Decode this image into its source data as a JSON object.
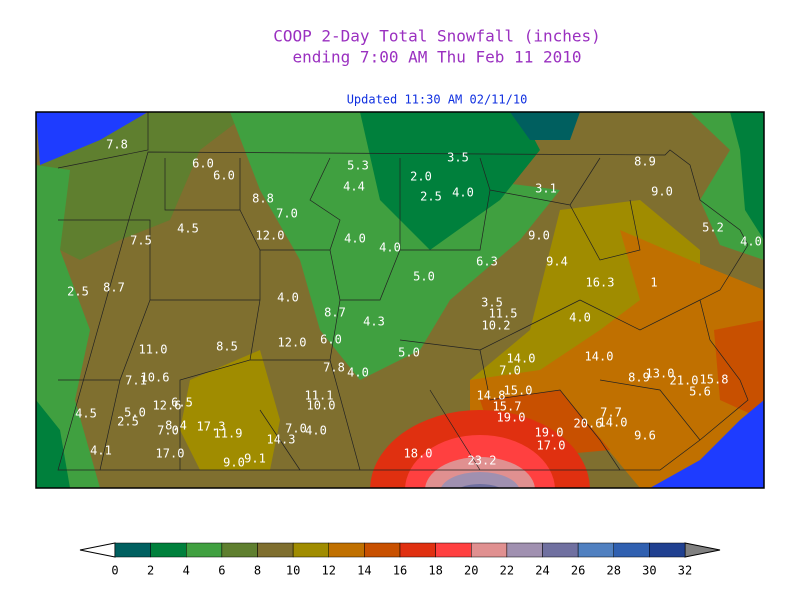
{
  "header": {
    "title": "COOP 2-Day Total Snowfall (inches)",
    "subtitle": "ending 7:00 AM Thu Feb 11 2010",
    "updated": "Updated 11:30 AM 02/11/10"
  },
  "station_values": [
    "7.8",
    "6.0",
    "6.0",
    "5.3",
    "3.5",
    "2.0",
    "8.9",
    "4.4",
    "3.1",
    "9.0",
    "2.5",
    "4.0",
    "8.8",
    "7.0",
    "4.5",
    "5.2",
    "12.0",
    "7.5",
    "4.0",
    "4.0",
    "9.0",
    "4.0",
    "5.0",
    "6.3",
    "9.4",
    "16.3",
    "1",
    "2.5",
    "8.7",
    "4.0",
    "3.5",
    "11.5",
    "8.7",
    "4.3",
    "10.2",
    "4.0",
    "12.0",
    "6.0",
    "11.0",
    "8.5",
    "5.0",
    "14.0",
    "14.0",
    "7.8",
    "4.0",
    "7.0",
    "8.9",
    "13.0",
    "21.0",
    "15.8",
    "7.1",
    "10.6",
    "5.6",
    "11.1",
    "14.8",
    "15.0",
    "12.6",
    "6.5",
    "10.0",
    "15.7",
    "4.5",
    "5.0",
    "7.7",
    "2.5",
    "19.0",
    "20.6",
    "14.0",
    "7.0",
    "8.4",
    "17.3",
    "11.9",
    "7.0",
    "4.0",
    "19.0",
    "9.6",
    "14.3",
    "17.0",
    "4.1",
    "17.0",
    "18.0",
    "9.1",
    "9.0",
    "23.2"
  ],
  "legend": {
    "colors": [
      "#005f5f",
      "#00803c",
      "#40a040",
      "#5f7f2f",
      "#7f6f2f",
      "#a08c00",
      "#c07000",
      "#c85000",
      "#e03010",
      "#ff4040",
      "#e09090",
      "#a090b0",
      "#7070a0",
      "#5080c0",
      "#3060b0",
      "#204090"
    ],
    "under_color": "#ffffff",
    "over_color": "#808080",
    "ticks": [
      0,
      2,
      4,
      6,
      8,
      10,
      12,
      14,
      16,
      18,
      20,
      22,
      24,
      26,
      28,
      30,
      32
    ]
  }
}
